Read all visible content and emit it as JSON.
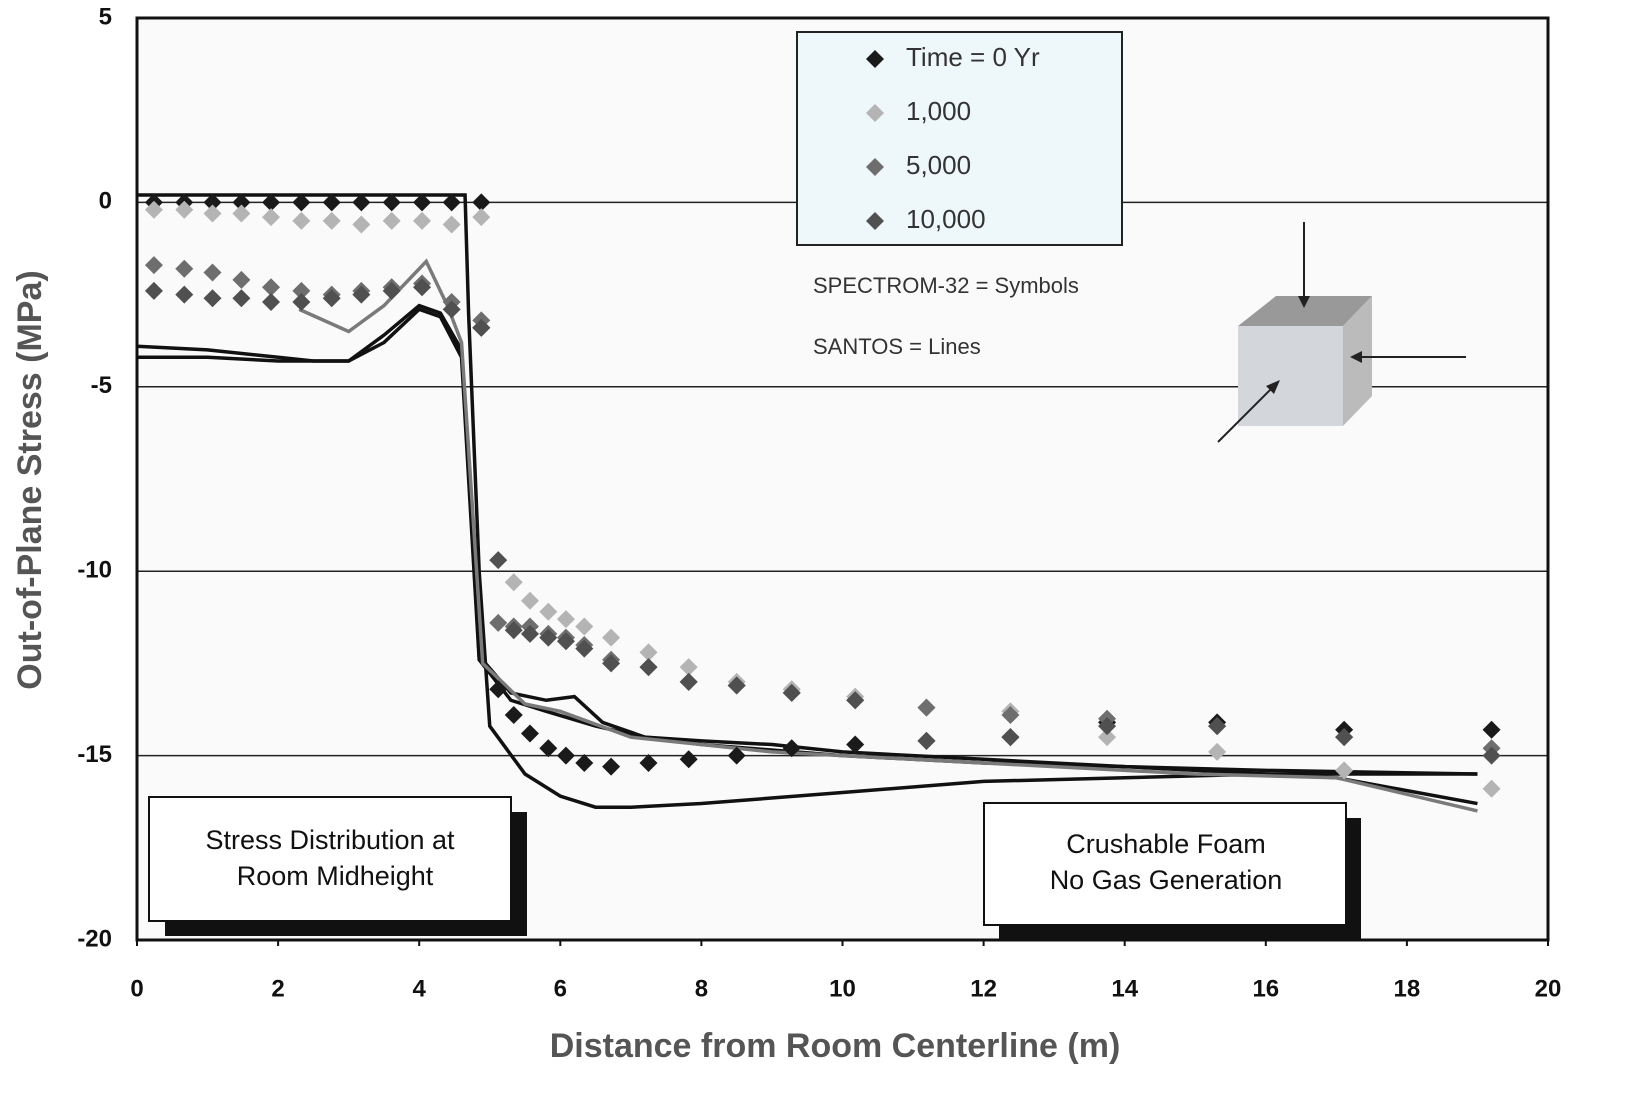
{
  "chart_data": {
    "type": "scatter",
    "xlabel": "Distance from Room Centerline (m)",
    "ylabel": "Out-of-Plane Stress (MPa)",
    "xlim": [
      0,
      20
    ],
    "ylim": [
      -20,
      5
    ],
    "xticks": [
      0,
      2,
      4,
      6,
      8,
      10,
      12,
      14,
      16,
      18,
      20
    ],
    "yticks": [
      -20,
      -15,
      -10,
      -5,
      0,
      5
    ],
    "grid": true,
    "series": [
      {
        "name": "Time = 0 Yr",
        "color": "#1a1a1a",
        "x": [
          0.24,
          0.67,
          1.07,
          1.48,
          1.9,
          2.33,
          2.76,
          3.18,
          3.61,
          4.04,
          4.46,
          4.88,
          4.88,
          5.12,
          5.34,
          5.57,
          5.83,
          6.08,
          6.34,
          6.72,
          7.25,
          7.82,
          8.5,
          9.28,
          10.18,
          11.19,
          12.38,
          13.75,
          15.31,
          17.11,
          19.2
        ],
        "values": [
          0,
          0,
          0,
          0,
          0,
          0,
          0,
          0,
          0,
          0,
          0,
          0,
          -3.4,
          -13.2,
          -13.9,
          -14.4,
          -14.8,
          -15.0,
          -15.2,
          -15.3,
          -15.2,
          -15.1,
          -15.0,
          -14.8,
          -14.7,
          -14.6,
          -14.5,
          -14.1,
          -14.1,
          -14.3,
          -14.3
        ]
      },
      {
        "name": "1,000",
        "color": "#b4b4b4",
        "x": [
          0.24,
          0.67,
          1.07,
          1.48,
          1.9,
          2.33,
          2.76,
          3.18,
          3.61,
          4.04,
          4.46,
          4.88,
          5.34,
          5.57,
          5.83,
          6.08,
          6.34,
          6.72,
          7.25,
          7.82,
          8.5,
          9.28,
          10.18,
          11.19,
          12.38,
          13.75,
          15.31,
          17.11,
          19.2
        ],
        "values": [
          -0.2,
          -0.2,
          -0.3,
          -0.3,
          -0.4,
          -0.5,
          -0.5,
          -0.6,
          -0.5,
          -0.5,
          -0.6,
          -0.4,
          -10.3,
          -10.8,
          -11.1,
          -11.3,
          -11.5,
          -11.8,
          -12.2,
          -12.6,
          -13.0,
          -13.2,
          -13.4,
          -13.7,
          -13.8,
          -14.5,
          -14.9,
          -15.4,
          -15.9
        ]
      },
      {
        "name": "5,000",
        "color": "#6e6e6e",
        "x": [
          0.24,
          0.67,
          1.07,
          1.48,
          1.9,
          2.33,
          2.76,
          3.18,
          3.61,
          4.04,
          4.46,
          4.88,
          5.12,
          5.34,
          5.57,
          5.83,
          6.08,
          6.34,
          6.72,
          7.25,
          7.82,
          8.5,
          9.28,
          10.18,
          11.19,
          12.38,
          13.75,
          15.31,
          17.11,
          19.2
        ],
        "values": [
          -1.7,
          -1.8,
          -1.9,
          -2.1,
          -2.3,
          -2.4,
          -2.5,
          -2.4,
          -2.3,
          -2.2,
          -2.7,
          -3.2,
          -11.4,
          -11.5,
          -11.5,
          -11.7,
          -11.8,
          -12.0,
          -12.4,
          -12.6,
          -13.0,
          -13.1,
          -13.3,
          -13.5,
          -13.7,
          -13.9,
          -14.0,
          -14.2,
          -14.5,
          -14.8
        ]
      },
      {
        "name": "10,000",
        "color": "#505050",
        "x": [
          0.24,
          0.67,
          1.07,
          1.48,
          1.9,
          2.33,
          2.76,
          3.18,
          3.61,
          4.04,
          4.46,
          4.88,
          5.12,
          5.34,
          5.57,
          5.83,
          6.08,
          6.34,
          6.72,
          7.25,
          7.82,
          8.5,
          9.28,
          10.18,
          11.19,
          12.38,
          13.75,
          15.31,
          17.11,
          19.2
        ],
        "values": [
          -2.4,
          -2.5,
          -2.6,
          -2.6,
          -2.7,
          -2.7,
          -2.6,
          -2.5,
          -2.4,
          -2.3,
          -2.9,
          -3.4,
          -9.7,
          -11.6,
          -11.7,
          -11.8,
          -11.9,
          -12.1,
          -12.5,
          -12.6,
          -13.0,
          -13.1,
          -13.3,
          -13.5,
          -14.6,
          -14.5,
          -14.2,
          -14.2,
          -14.5,
          -15.0
        ]
      }
    ],
    "lines": [
      {
        "color": "#111111",
        "x": [
          0,
          4.65,
          4.7,
          4.85,
          5.0,
          5.5,
          6.0,
          6.5,
          7.0,
          8,
          10,
          12,
          14,
          16,
          17,
          19
        ],
        "values": [
          0.2,
          0.2,
          -3,
          -10,
          -14.2,
          -15.5,
          -16.1,
          -16.4,
          -16.4,
          -16.3,
          -16.0,
          -15.7,
          -15.6,
          -15.5,
          -15.6,
          -16.3
        ]
      },
      {
        "color": "#111111",
        "x": [
          0,
          1,
          2,
          2.5,
          3,
          3.5,
          4,
          4.3,
          4.6,
          4.85,
          5.3,
          5.8,
          6.2,
          6.6,
          7.2,
          8,
          9,
          10,
          12,
          14,
          16,
          19
        ],
        "values": [
          -3.9,
          -4.0,
          -4.2,
          -4.3,
          -4.3,
          -3.6,
          -2.8,
          -3.0,
          -4.0,
          -12.3,
          -13.3,
          -13.5,
          -13.4,
          -14.1,
          -14.5,
          -14.6,
          -14.7,
          -14.9,
          -15.1,
          -15.3,
          -15.4,
          -15.5
        ]
      },
      {
        "color": "#111111",
        "x": [
          0,
          1,
          2,
          2.5,
          3,
          3.5,
          4,
          4.3,
          4.6,
          4.85,
          5.3,
          5.8,
          6.5,
          7.2,
          8,
          10,
          12,
          14,
          16,
          19
        ],
        "values": [
          -4.2,
          -4.2,
          -4.3,
          -4.3,
          -4.3,
          -3.8,
          -2.9,
          -3.1,
          -4.2,
          -12.4,
          -13.5,
          -13.8,
          -14.2,
          -14.5,
          -14.7,
          -15.0,
          -15.2,
          -15.3,
          -15.5,
          -15.5
        ]
      },
      {
        "color": "#7a7a7a",
        "x": [
          2.3,
          3.0,
          3.5,
          4.1,
          4.4,
          4.6,
          4.9,
          5.5,
          6.0,
          7.0,
          9,
          11,
          13,
          15,
          17,
          19
        ],
        "values": [
          -2.9,
          -3.5,
          -2.8,
          -1.6,
          -2.8,
          -3.8,
          -12.5,
          -13.6,
          -13.8,
          -14.5,
          -14.9,
          -15.1,
          -15.3,
          -15.5,
          -15.6,
          -16.5
        ]
      }
    ],
    "annotations": [
      "SPECTROM-32 = Symbols",
      "SANTOS = Lines",
      "Stress Distribution at",
      "Room Midheight",
      "Crushable Foam",
      "No Gas Generation"
    ]
  }
}
